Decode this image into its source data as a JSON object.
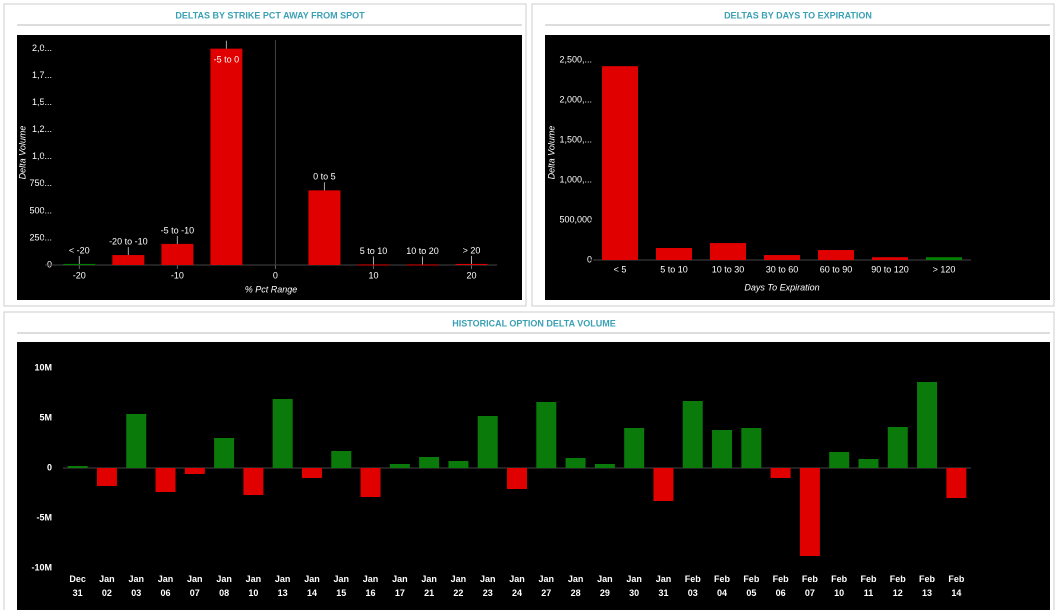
{
  "chart_data": [
    {
      "type": "bar",
      "title": "DELTAS BY STRIKE PCT AWAY FROM SPOT",
      "y_label": "Delta Volume",
      "x_label": "% Pct Range",
      "x": [
        -20,
        -15,
        -10,
        -5,
        5,
        10,
        15,
        20
      ],
      "bar_labels": [
        "< -20",
        "-20 to -10",
        "-5 to -10",
        "-5 to 0",
        "0 to 5",
        "5 to 10",
        "10 to 20",
        "> 20"
      ],
      "values": [
        10,
        92,
        195,
        2000,
        690,
        5,
        5,
        10
      ],
      "colors": [
        "#008000",
        "#e00000",
        "#e00000",
        "#e00000",
        "#e00000",
        "#e00000",
        "#e00000",
        "#e00000"
      ],
      "xlim": [
        -23.5,
        22.6
      ],
      "xticks": [
        -20,
        -10,
        0,
        10,
        20
      ],
      "ylim": [
        0,
        2080
      ],
      "yticks": [
        0,
        {
          "value": 250,
          "label": "250..."
        },
        {
          "value": 500,
          "label": "500..."
        },
        {
          "value": 750,
          "label": "750..."
        },
        {
          "value": 1000,
          "label": "1,0..."
        },
        {
          "value": 1250,
          "label": "1,2..."
        },
        {
          "value": 1500,
          "label": "1,5..."
        },
        {
          "value": 1750,
          "label": "1,7..."
        },
        {
          "value": 2000,
          "label": "2,0..."
        }
      ]
    },
    {
      "type": "bar",
      "title": "DELTAS BY DAYS TO EXPIRATION",
      "y_label": "Delta Volume",
      "x_label": "Days To Expiration",
      "categories": [
        "< 5",
        "5 to 10",
        "10 to 30",
        "30 to 60",
        "60 to 90",
        "90 to 120",
        "> 120"
      ],
      "values": [
        2425000,
        150000,
        212000,
        62000,
        125000,
        35000,
        35000
      ],
      "colors": [
        "#e00000",
        "#e00000",
        "#e00000",
        "#e00000",
        "#e00000",
        "#e00000",
        "#008000"
      ],
      "ylim": [
        0,
        2690000
      ],
      "yticks": [
        0,
        {
          "value": 500000,
          "label": "500,000"
        },
        {
          "value": 1000000,
          "label": "1,000,..."
        },
        {
          "value": 1500000,
          "label": "1,500,..."
        },
        {
          "value": 2000000,
          "label": "2,000,..."
        },
        {
          "value": 2500000,
          "label": "2,500,..."
        }
      ]
    },
    {
      "type": "bar",
      "title": "HISTORICAL OPTION DELTA VOLUME",
      "categories": [
        "Dec 31",
        "Jan 02",
        "Jan 03",
        "Jan 06",
        "Jan 07",
        "Jan 08",
        "Jan 10",
        "Jan 13",
        "Jan 14",
        "Jan 15",
        "Jan 16",
        "Jan 17",
        "Jan 21",
        "Jan 22",
        "Jan 23",
        "Jan 24",
        "Jan 27",
        "Jan 28",
        "Jan 29",
        "Jan 30",
        "Jan 31",
        "Feb 03",
        "Feb 04",
        "Feb 05",
        "Feb 06",
        "Feb 07",
        "Feb 10",
        "Feb 11",
        "Feb 12",
        "Feb 13",
        "Feb 14"
      ],
      "values": [
        200000,
        -1800000,
        5400000,
        -2400000,
        -600000,
        3000000,
        -2700000,
        6900000,
        -1000000,
        1700000,
        -2900000,
        400000,
        1100000,
        700000,
        5200000,
        -2100000,
        6600000,
        1000000,
        400000,
        4000000,
        -3300000,
        6700000,
        3800000,
        4000000,
        -1000000,
        -8800000,
        1600000,
        900000,
        4100000,
        8600000,
        -3000000
      ],
      "positive_color": "#0a7a0a",
      "negative_color": "#e00000",
      "ylim": [
        -10700000,
        11800000
      ],
      "yticks": [
        {
          "value": -10000000,
          "label": "-10M"
        },
        {
          "value": -5000000,
          "label": "-5M"
        },
        0,
        {
          "value": 5000000,
          "label": "5M"
        },
        {
          "value": 10000000,
          "label": "10M"
        }
      ]
    }
  ]
}
